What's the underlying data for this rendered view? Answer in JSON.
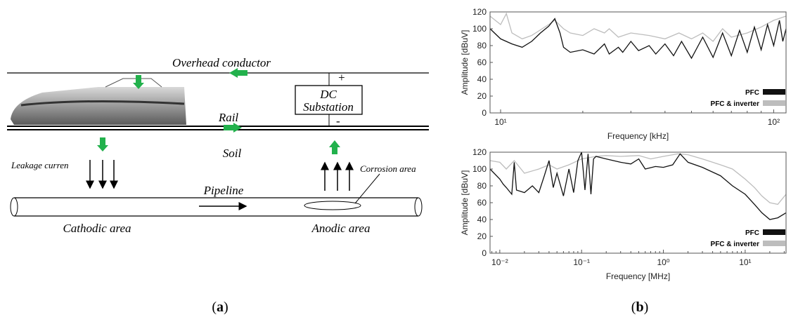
{
  "diagram": {
    "overhead": "Overhead conductor",
    "plus": "+",
    "substation": [
      "DC",
      "Substation"
    ],
    "minus": "-",
    "rail": "Rail",
    "soil": "Soil",
    "leakage": "Leakage curren",
    "corrosion": "Corrosion area",
    "pipeline": "Pipeline",
    "cathodic": "Cathodic area",
    "anodic": "Anodic area"
  },
  "panel_labels": [
    "a",
    "b"
  ],
  "chart_data": [
    {
      "type": "line",
      "xscale": "log",
      "ylabel": "Amplitude [dBuV]",
      "xlabel": "Frequency [kHz]",
      "xlim": [
        9.15,
        111
      ],
      "xticks": [
        {
          "value": 10,
          "label": "10¹"
        },
        {
          "value": 100,
          "label": "10²"
        }
      ],
      "ylim": [
        0,
        120
      ],
      "yticks": [
        0,
        20,
        40,
        60,
        80,
        100,
        120
      ],
      "legend": "lower right",
      "series": [
        {
          "name": "PFC & inverter",
          "color": "#bdbdbd",
          "x": [
            9.15,
            10,
            10.5,
            11,
            12,
            13,
            15,
            15.8,
            17,
            18,
            20,
            22,
            24,
            25,
            27,
            30,
            35,
            40,
            45,
            50,
            55,
            60,
            65,
            70,
            80,
            90,
            100,
            111
          ],
          "values": [
            115,
            105,
            118,
            95,
            88,
            92,
            105,
            110,
            100,
            95,
            92,
            100,
            95,
            100,
            90,
            95,
            92,
            88,
            95,
            88,
            95,
            85,
            100,
            90,
            95,
            102,
            110,
            115
          ]
        },
        {
          "name": "PFC",
          "color": "#111111",
          "x": [
            9.15,
            10,
            11,
            12,
            13,
            14,
            15,
            15.8,
            16.5,
            17,
            18,
            20,
            22,
            24,
            25,
            27,
            28,
            30,
            32,
            35,
            37,
            40,
            43,
            46,
            50,
            55,
            60,
            65,
            70,
            75,
            80,
            85,
            90,
            95,
            100,
            105,
            108,
            111
          ],
          "values": [
            100,
            88,
            82,
            78,
            85,
            95,
            103,
            112,
            95,
            78,
            72,
            75,
            70,
            82,
            70,
            78,
            72,
            85,
            74,
            80,
            70,
            82,
            68,
            85,
            65,
            90,
            66,
            95,
            68,
            98,
            72,
            102,
            75,
            105,
            80,
            110,
            85,
            100
          ]
        }
      ]
    },
    {
      "type": "line",
      "xscale": "log",
      "ylabel": "Amplitude [dBuV]",
      "xlabel": "Frequency [MHz]",
      "xlim": [
        0.0076,
        31.6
      ],
      "xticks": [
        {
          "value": 0.01,
          "label": "10⁻²"
        },
        {
          "value": 0.1,
          "label": "10⁻¹"
        },
        {
          "value": 1,
          "label": "10⁰"
        },
        {
          "value": 10,
          "label": "10¹"
        }
      ],
      "ylim": [
        0,
        120
      ],
      "yticks": [
        0,
        20,
        40,
        60,
        80,
        100,
        120
      ],
      "legend": "lower right",
      "series": [
        {
          "name": "PFC & inverter",
          "color": "#bdbdbd",
          "x": [
            0.0076,
            0.01,
            0.012,
            0.015,
            0.02,
            0.03,
            0.04,
            0.05,
            0.07,
            0.1,
            0.15,
            0.2,
            0.3,
            0.5,
            0.7,
            1,
            1.5,
            2,
            3,
            5,
            7,
            10,
            13,
            16,
            20,
            25,
            31.6
          ],
          "values": [
            110,
            108,
            100,
            110,
            95,
            100,
            105,
            100,
            105,
            112,
            115,
            116,
            115,
            116,
            112,
            115,
            118,
            117,
            112,
            105,
            100,
            88,
            78,
            68,
            60,
            58,
            70
          ]
        },
        {
          "name": "PFC",
          "color": "#111111",
          "x": [
            0.0076,
            0.01,
            0.011,
            0.012,
            0.014,
            0.015,
            0.016,
            0.02,
            0.025,
            0.03,
            0.035,
            0.04,
            0.045,
            0.05,
            0.06,
            0.07,
            0.08,
            0.09,
            0.1,
            0.11,
            0.12,
            0.13,
            0.14,
            0.15,
            0.2,
            0.3,
            0.4,
            0.5,
            0.6,
            0.8,
            1,
            1.3,
            1.6,
            2,
            3,
            5,
            7,
            10,
            13,
            16,
            20,
            25,
            31.6
          ],
          "values": [
            100,
            88,
            82,
            78,
            70,
            108,
            75,
            72,
            80,
            72,
            92,
            110,
            78,
            95,
            68,
            100,
            72,
            110,
            120,
            75,
            118,
            70,
            112,
            115,
            112,
            108,
            106,
            112,
            100,
            103,
            102,
            105,
            118,
            108,
            102,
            92,
            80,
            70,
            58,
            48,
            40,
            42,
            48
          ]
        }
      ]
    }
  ]
}
